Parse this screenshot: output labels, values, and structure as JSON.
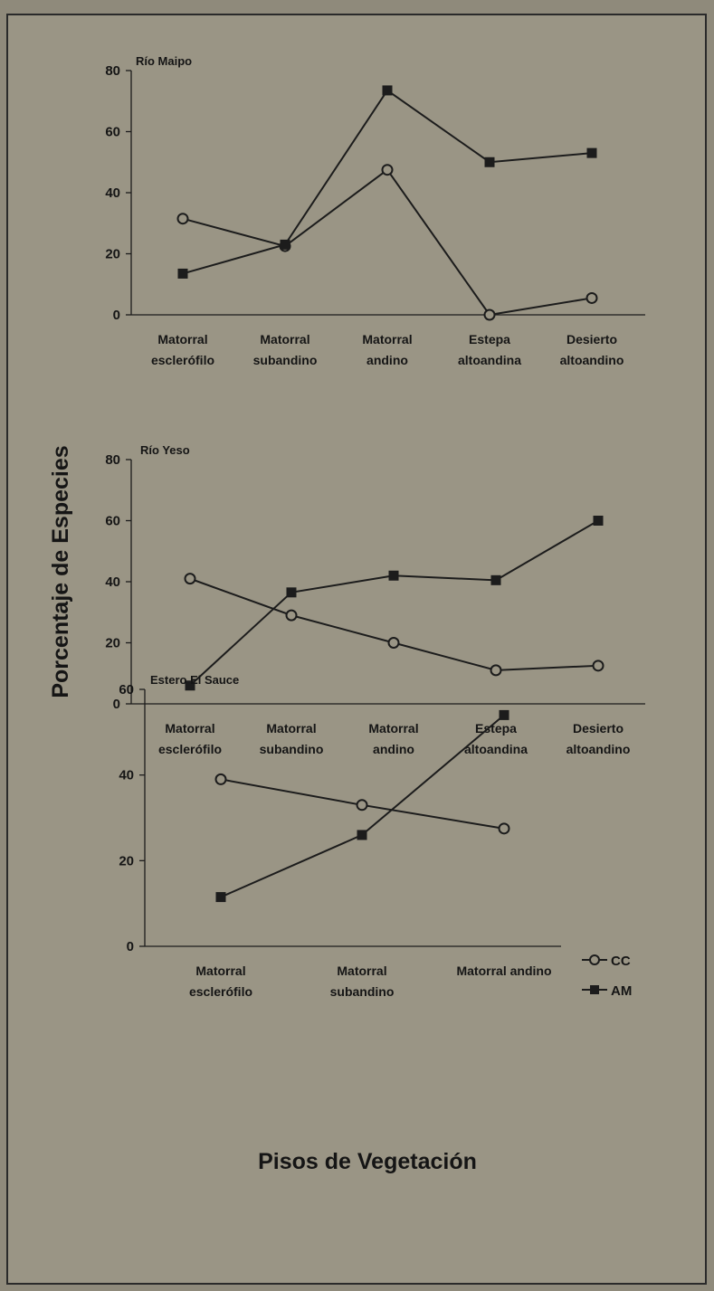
{
  "ylabel": "Porcentaje de Especies",
  "xlabel": "Pisos de Vegetación",
  "legend": {
    "cc": "CC",
    "am": "AM"
  },
  "colors": {
    "line": "#1c1c1c",
    "background": "#9a9585"
  },
  "chart_data": [
    {
      "type": "line",
      "title": "Río Maipo",
      "categories": [
        "Matorral esclerófilo",
        "Matorral subandino",
        "Matorral andino",
        "Estepa altoandina",
        "Desierto altoandino"
      ],
      "ylim": [
        0,
        80
      ],
      "yticks": [
        0,
        20,
        40,
        60,
        80
      ],
      "series": [
        {
          "name": "CC",
          "values": [
            31.5,
            22.5,
            47.5,
            0,
            5.5
          ]
        },
        {
          "name": "AM",
          "values": [
            13.5,
            23,
            73.5,
            50,
            53
          ]
        }
      ]
    },
    {
      "type": "line",
      "title": "Río Yeso",
      "categories": [
        "Matorral esclerófilo",
        "Matorral subandino",
        "Matorral andino",
        "Estepa altoandina",
        "Desierto altoandino"
      ],
      "ylim": [
        0,
        80
      ],
      "yticks": [
        0,
        20,
        40,
        60,
        80
      ],
      "series": [
        {
          "name": "CC",
          "values": [
            41,
            29,
            20,
            11,
            12.5
          ]
        },
        {
          "name": "AM",
          "values": [
            6,
            36.5,
            42,
            40.5,
            60
          ]
        }
      ]
    },
    {
      "type": "line",
      "title": "Estero El Sauce",
      "categories": [
        "Matorral esclerófilo",
        "Matorral subandino",
        "Matorral andino"
      ],
      "ylim": [
        0,
        60
      ],
      "yticks": [
        0,
        20,
        40,
        60
      ],
      "series": [
        {
          "name": "CC",
          "values": [
            39,
            33,
            27.5
          ]
        },
        {
          "name": "AM",
          "values": [
            11.5,
            26,
            54
          ]
        }
      ]
    }
  ]
}
